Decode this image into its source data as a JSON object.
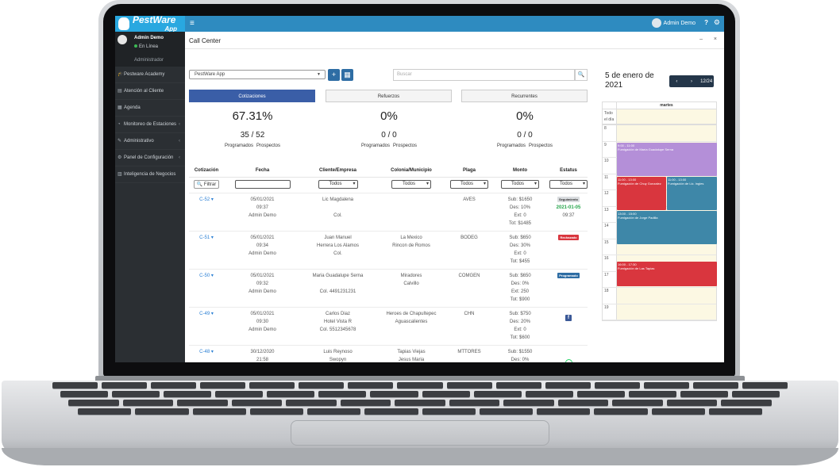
{
  "app": {
    "logo_name": "PestWare",
    "logo_sub": "App",
    "user_name": "Admin Demo",
    "help": "?",
    "settings_glyph": "⚙"
  },
  "sidebar": {
    "user_name": "Admin Demo",
    "status": "En Línea",
    "role": "Administrador",
    "items": [
      {
        "icon": "graduation-cap-icon",
        "glyph": "🎓",
        "label": "Pestware Academy",
        "chevron": ""
      },
      {
        "icon": "clipboard-icon",
        "glyph": "▤",
        "label": "Atención al Cliente",
        "chevron": ""
      },
      {
        "icon": "calendar-icon",
        "glyph": "▦",
        "label": "Agenda",
        "chevron": ""
      },
      {
        "icon": "dashboard-icon",
        "glyph": "◔",
        "label": "Monitoreo de Estaciones",
        "chevron": "‹"
      },
      {
        "icon": "edit-icon",
        "glyph": "✎",
        "label": "Administrativo",
        "chevron": "‹"
      },
      {
        "icon": "cogs-icon",
        "glyph": "⚙",
        "label": "Panel de Configuración",
        "chevron": "‹"
      },
      {
        "icon": "chart-icon",
        "glyph": "▥",
        "label": "Inteligencia de Negocios",
        "chevron": ""
      }
    ]
  },
  "page": {
    "title": "Call Center",
    "window_controls": "– ×",
    "company_select": "PestWare App",
    "add_glyph": "+",
    "calendar_glyph": "▦",
    "search_placeholder": "Buscar",
    "search_glyph": "🔍"
  },
  "tabs": [
    {
      "label": "Cotizaciones",
      "active": true
    },
    {
      "label": "Refuerzos",
      "active": false
    },
    {
      "label": "Recurrentes",
      "active": false
    }
  ],
  "stats": [
    {
      "pct": "67.31%",
      "frac": "35 / 52",
      "l1": "Programados",
      "l2": "Prospectos"
    },
    {
      "pct": "0%",
      "frac": "0 / 0",
      "l1": "Programados",
      "l2": "Prospectos"
    },
    {
      "pct": "0%",
      "frac": "0 / 0",
      "l1": "Programados",
      "l2": "Prospectos"
    }
  ],
  "table": {
    "headers": [
      "Cotización",
      "Fecha",
      "Cliente/Empresa",
      "Colonia/Municipio",
      "Plaga",
      "Monto",
      "Estatus"
    ],
    "filter_label": "🔍 Filtrar",
    "todos": "Todos",
    "rows": [
      {
        "id": "C-52 ▾",
        "date": "05/01/2021",
        "time": "09:37",
        "by": "Admin Demo",
        "client1": "Lic Magdalena",
        "client2": "",
        "client3": "Col.",
        "col1": "",
        "col2": "",
        "plaga": "AVES",
        "sub": "Sub: $1650",
        "des": "Des: 10%",
        "ext": "Ext: 0",
        "tot": "Tot: $1485",
        "badge": "Seguimiento",
        "badge_type": "seg",
        "sdate": "2021-01-05",
        "stime": "09:37",
        "icon": ""
      },
      {
        "id": "C-51 ▾",
        "date": "05/01/2021",
        "time": "09:34",
        "by": "Admin Demo",
        "client1": "Juan Manuel",
        "client2": "Herrera Los Alamos",
        "client3": "Col.",
        "col1": "La Mexico",
        "col2": "Rincon de Romos",
        "plaga": "BODEG",
        "sub": "Sub: $650",
        "des": "Des: 30%",
        "ext": "Ext: 0",
        "tot": "Tot: $455",
        "badge": "Rechazado",
        "badge_type": "rech",
        "sdate": "",
        "stime": "",
        "icon": ""
      },
      {
        "id": "C-50 ▾",
        "date": "05/01/2021",
        "time": "09:32",
        "by": "Admin Demo",
        "client1": "Maria Guadalupe Serna",
        "client2": "",
        "client3": "Col. 4491231231",
        "col1": "Miradores",
        "col2": "Calvillo",
        "plaga": "COMGEN",
        "sub": "Sub: $650",
        "des": "Des: 0%",
        "ext": "Ext: 250",
        "tot": "Tot: $900",
        "badge": "Programado",
        "badge_type": "prog",
        "sdate": "",
        "stime": "",
        "icon": ""
      },
      {
        "id": "C-49 ▾",
        "date": "05/01/2021",
        "time": "09:30",
        "by": "Admin Demo",
        "client1": "Carlos Diaz",
        "client2": "Hotel Vista R",
        "client3": "Col. 5512345678",
        "col1": "Heroes de Chapultepec",
        "col2": "Aguascalientes",
        "plaga": "CHN",
        "sub": "Sub: $750",
        "des": "Des: 20%",
        "ext": "Ext: 0",
        "tot": "Tot: $600",
        "badge": "",
        "badge_type": "",
        "sdate": "",
        "stime": "",
        "icon": "facebook-icon"
      },
      {
        "id": "C-48 ▾",
        "date": "30/12/2020",
        "time": "21:58",
        "by": "Admin Demo",
        "client1": "Luis Reynoso",
        "client2": "Swopyn",
        "client3": "Col. 4494767293",
        "col1": "Tapias Viejas",
        "col2": "Jesus Maria",
        "plaga": "MTTORES",
        "sub": "Sub: $1550",
        "des": "Des: 0%",
        "ext": "Ext: 0",
        "tot": "Tot: $1550",
        "badge": "",
        "badge_type": "",
        "sdate": "",
        "stime": "",
        "icon": "whatsapp-icon"
      }
    ]
  },
  "calendar": {
    "date_line1": "5 de enero de",
    "date_line2": "2021",
    "prev": "‹",
    "next": "›",
    "counter": "12/24",
    "day": "martes",
    "allday_1": "Todo",
    "allday_2": "el día",
    "hours": [
      "8",
      "9",
      "10",
      "11",
      "12",
      "13",
      "14",
      "15",
      "16",
      "17",
      "18",
      "19"
    ],
    "events": [
      {
        "time": "9:00 - 11:00",
        "title": "Fumigación de María Guadalupe Serna",
        "color": "#b48fd8"
      },
      {
        "time": "11:00 - 13:00",
        "title": "Fumigación de Chuy Gonzalez",
        "color": "#d9363e"
      },
      {
        "time": "11:00 - 13:00",
        "title": "Fumigación de Lic. Ingles",
        "color": "#3e87a8"
      },
      {
        "time": "13:00 - 15:00",
        "title": "Fumigación de Jorge Padilla",
        "color": "#3e87a8"
      },
      {
        "time": "16:00 - 17:30",
        "title": "Fumigación de Las Tapias",
        "color": "#d9363e"
      }
    ]
  }
}
